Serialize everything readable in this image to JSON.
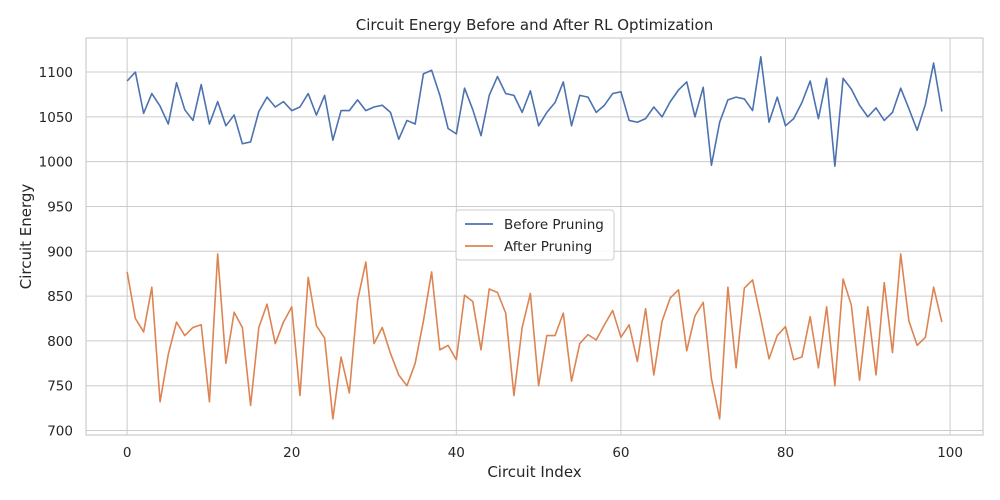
{
  "chart_data": {
    "type": "line",
    "title": "Circuit Energy Before and After RL Optimization",
    "xlabel": "Circuit Index",
    "ylabel": "Circuit Energy",
    "xlim": [
      -5,
      104
    ],
    "ylim": [
      695,
      1138
    ],
    "xticks": [
      0,
      20,
      40,
      60,
      80,
      100
    ],
    "yticks": [
      700,
      750,
      800,
      850,
      900,
      950,
      1000,
      1050,
      1100
    ],
    "grid": true,
    "legend_position": "center",
    "series": [
      {
        "name": "Before Pruning",
        "color": "#4c72b0",
        "x": [
          0,
          1,
          2,
          3,
          4,
          5,
          6,
          7,
          8,
          9,
          10,
          11,
          12,
          13,
          14,
          15,
          16,
          17,
          18,
          19,
          20,
          21,
          22,
          23,
          24,
          25,
          26,
          27,
          28,
          29,
          30,
          31,
          32,
          33,
          34,
          35,
          36,
          37,
          38,
          39,
          40,
          41,
          42,
          43,
          44,
          45,
          46,
          47,
          48,
          49,
          50,
          51,
          52,
          53,
          54,
          55,
          56,
          57,
          58,
          59,
          60,
          61,
          62,
          63,
          64,
          65,
          66,
          67,
          68,
          69,
          70,
          71,
          72,
          73,
          74,
          75,
          76,
          77,
          78,
          79,
          80,
          81,
          82,
          83,
          84,
          85,
          86,
          87,
          88,
          89,
          90,
          91,
          92,
          93,
          94,
          95,
          96,
          97,
          98,
          99
        ],
        "values": [
          1090,
          1100,
          1054,
          1076,
          1062,
          1042,
          1088,
          1058,
          1046,
          1086,
          1042,
          1067,
          1040,
          1052,
          1020,
          1022,
          1056,
          1072,
          1061,
          1067,
          1057,
          1061,
          1076,
          1052,
          1074,
          1024,
          1057,
          1057,
          1069,
          1057,
          1061,
          1063,
          1055,
          1025,
          1046,
          1042,
          1098,
          1102,
          1074,
          1037,
          1031,
          1082,
          1058,
          1029,
          1074,
          1095,
          1076,
          1074,
          1055,
          1079,
          1040,
          1055,
          1066,
          1089,
          1040,
          1074,
          1072,
          1055,
          1063,
          1076,
          1078,
          1046,
          1044,
          1048,
          1061,
          1050,
          1067,
          1080,
          1089,
          1050,
          1083,
          996,
          1044,
          1069,
          1072,
          1070,
          1057,
          1117,
          1044,
          1072,
          1040,
          1048,
          1066,
          1090,
          1048,
          1093,
          995,
          1093,
          1081,
          1063,
          1050,
          1060,
          1046,
          1055,
          1082,
          1059,
          1035,
          1064,
          1110,
          1056
        ]
      },
      {
        "name": "After Pruning",
        "color": "#dd8452",
        "x": [
          0,
          1,
          2,
          3,
          4,
          5,
          6,
          7,
          8,
          9,
          10,
          11,
          12,
          13,
          14,
          15,
          16,
          17,
          18,
          19,
          20,
          21,
          22,
          23,
          24,
          25,
          26,
          27,
          28,
          29,
          30,
          31,
          32,
          33,
          34,
          35,
          36,
          37,
          38,
          39,
          40,
          41,
          42,
          43,
          44,
          45,
          46,
          47,
          48,
          49,
          50,
          51,
          52,
          53,
          54,
          55,
          56,
          57,
          58,
          59,
          60,
          61,
          62,
          63,
          64,
          65,
          66,
          67,
          68,
          69,
          70,
          71,
          72,
          73,
          74,
          75,
          76,
          77,
          78,
          79,
          80,
          81,
          82,
          83,
          84,
          85,
          86,
          87,
          88,
          89,
          90,
          91,
          92,
          93,
          94,
          95,
          96,
          97,
          98,
          99
        ],
        "values": [
          877,
          825,
          810,
          860,
          732,
          785,
          821,
          806,
          815,
          818,
          732,
          897,
          775,
          832,
          815,
          728,
          815,
          841,
          797,
          821,
          838,
          739,
          871,
          817,
          803,
          713,
          782,
          742,
          845,
          888,
          797,
          815,
          786,
          762,
          750,
          775,
          822,
          877,
          790,
          795,
          779,
          851,
          844,
          790,
          858,
          854,
          831,
          739,
          815,
          853,
          750,
          806,
          806,
          831,
          755,
          797,
          807,
          801,
          818,
          834,
          804,
          818,
          777,
          836,
          762,
          822,
          848,
          857,
          789,
          828,
          843,
          758,
          713,
          860,
          770,
          859,
          868,
          825,
          780,
          806,
          816,
          779,
          782,
          827,
          770,
          838,
          750,
          869,
          840,
          756,
          838,
          762,
          865,
          787,
          897,
          822,
          795,
          804,
          860,
          821
        ]
      }
    ]
  }
}
